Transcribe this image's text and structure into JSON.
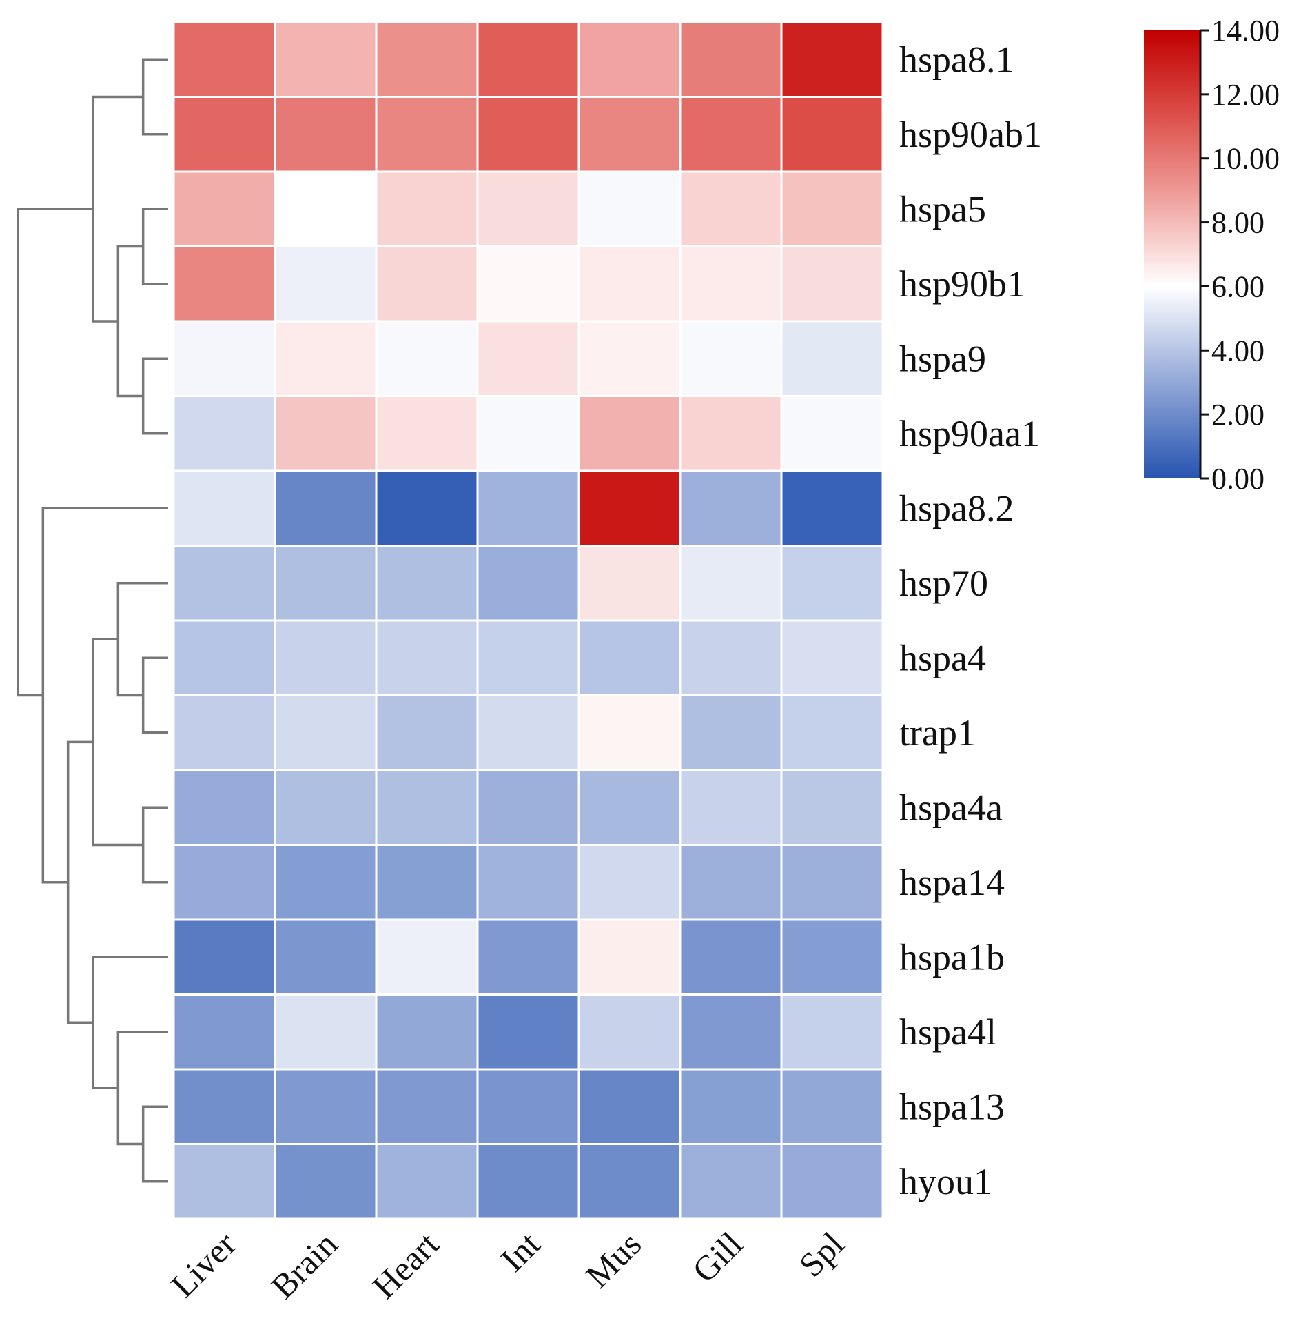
{
  "chart_data": {
    "type": "heatmap",
    "columns": [
      "Liver",
      "Brain",
      "Heart",
      "Int",
      "Mus",
      "Gill",
      "Spl"
    ],
    "rows": [
      "hspa8.1",
      "hsp90ab1",
      "hspa5",
      "hsp90b1",
      "hspa9",
      "hsp90aa1",
      "hspa8.2",
      "hsp70",
      "hspa4",
      "trap1",
      "hspa4a",
      "hspa14",
      "hspa1b",
      "hspa4l",
      "hspa13",
      "hyou1"
    ],
    "values": [
      [
        10.5,
        8.2,
        9.3,
        10.9,
        8.7,
        9.9,
        12.9
      ],
      [
        10.6,
        10.0,
        9.6,
        10.9,
        9.6,
        10.5,
        11.4
      ],
      [
        8.4,
        6.0,
        7.3,
        7.0,
        5.8,
        7.3,
        7.8
      ],
      [
        9.6,
        5.5,
        7.2,
        6.2,
        6.6,
        6.6,
        7.0
      ],
      [
        5.7,
        6.6,
        5.8,
        6.9,
        6.4,
        5.8,
        5.2
      ],
      [
        4.7,
        7.7,
        6.9,
        5.8,
        8.3,
        7.3,
        5.8
      ],
      [
        5.1,
        1.8,
        0.4,
        3.4,
        13.2,
        3.3,
        0.5
      ],
      [
        3.9,
        3.8,
        3.8,
        3.2,
        6.8,
        5.3,
        4.4
      ],
      [
        4.0,
        4.5,
        4.5,
        4.4,
        4.0,
        4.5,
        4.9
      ],
      [
        4.3,
        4.8,
        3.9,
        4.8,
        6.3,
        3.8,
        4.4
      ],
      [
        3.1,
        3.8,
        3.8,
        3.3,
        3.6,
        4.5,
        4.1
      ],
      [
        3.1,
        2.6,
        2.7,
        3.4,
        4.7,
        3.3,
        3.3
      ],
      [
        1.4,
        2.4,
        5.5,
        2.5,
        6.5,
        2.3,
        2.6
      ],
      [
        2.5,
        5.0,
        3.0,
        1.6,
        4.5,
        2.5,
        4.4
      ],
      [
        2.1,
        2.5,
        2.5,
        2.3,
        1.8,
        2.7,
        3.0
      ],
      [
        3.8,
        2.2,
        3.4,
        2.0,
        2.0,
        3.3,
        3.1
      ]
    ],
    "color_scale": {
      "min": 0,
      "max": 14,
      "ticks": [
        "0.00",
        "2.00",
        "4.00",
        "6.00",
        "8.00",
        "10.00",
        "12.00",
        "14.00"
      ],
      "stops": [
        {
          "value": 0,
          "color": "#2654b0"
        },
        {
          "value": 3.5,
          "color": "#a4b6de"
        },
        {
          "value": 6,
          "color": "#ffffff"
        },
        {
          "value": 9,
          "color": "#ee9995"
        },
        {
          "value": 11.5,
          "color": "#db4a45"
        },
        {
          "value": 14,
          "color": "#c00000"
        }
      ]
    },
    "legend_position": "top-right",
    "row_dendrogram": [
      [
        0,
        1
      ],
      [
        2,
        3
      ],
      [
        4,
        5
      ],
      [
        17,
        18
      ],
      [
        16,
        19
      ],
      [
        8,
        9
      ],
      [
        7,
        21
      ],
      [
        10,
        11
      ],
      [
        22,
        23
      ],
      [
        14,
        15
      ],
      [
        13,
        25
      ],
      [
        12,
        26
      ],
      [
        24,
        27
      ],
      [
        6,
        28
      ],
      [
        20,
        29
      ]
    ]
  }
}
